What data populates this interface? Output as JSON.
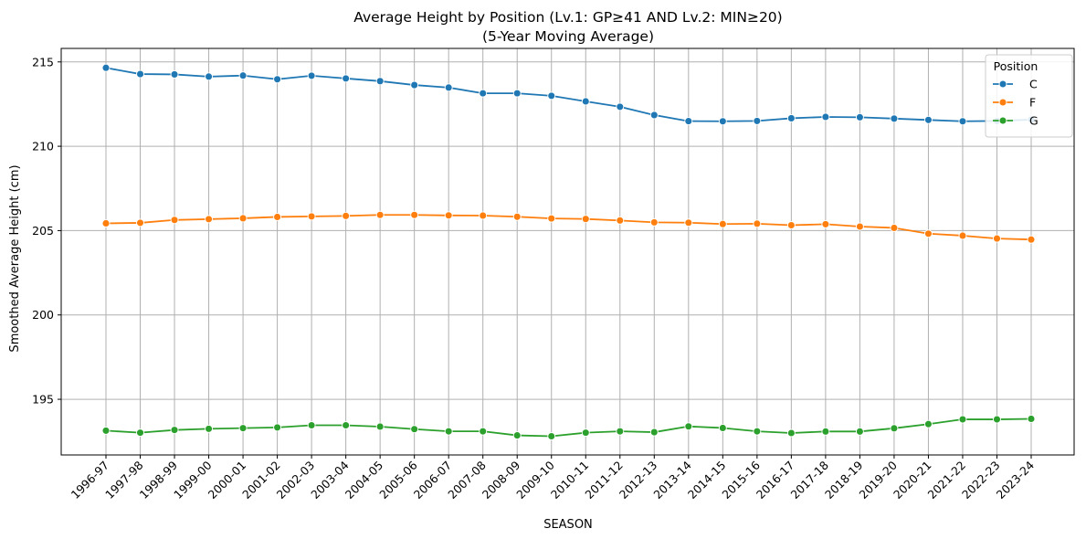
{
  "chart_data": {
    "type": "line",
    "title_line1": "Average Height by Position (Lv.1: GP≥41 AND Lv.2: MIN≥20)",
    "title_line2": "(5-Year Moving Average)",
    "xlabel": "SEASON",
    "ylabel": "Smoothed Average Height (cm)",
    "ylim": [
      191.7,
      215.8
    ],
    "yticks": [
      195,
      200,
      205,
      210,
      215
    ],
    "grid": true,
    "legend_title": "Position",
    "legend_placement": "top-right",
    "categories": [
      "1996-97",
      "1997-98",
      "1998-99",
      "1999-00",
      "2000-01",
      "2001-02",
      "2002-03",
      "2003-04",
      "2004-05",
      "2005-06",
      "2006-07",
      "2007-08",
      "2008-09",
      "2009-10",
      "2010-11",
      "2011-12",
      "2012-13",
      "2013-14",
      "2014-15",
      "2015-16",
      "2016-17",
      "2017-18",
      "2018-19",
      "2019-20",
      "2020-21",
      "2021-22",
      "2022-23",
      "2023-24"
    ],
    "series": [
      {
        "name": "C",
        "color": "#1f77b4",
        "values": [
          214.65,
          214.28,
          214.26,
          214.13,
          214.19,
          213.97,
          214.18,
          214.02,
          213.86,
          213.63,
          213.48,
          213.14,
          213.14,
          212.99,
          212.66,
          212.34,
          211.85,
          211.49,
          211.48,
          211.5,
          211.66,
          211.74,
          211.72,
          211.64,
          211.56,
          211.48,
          211.5,
          211.58
        ]
      },
      {
        "name": "F",
        "color": "#ff7f0e",
        "values": [
          205.43,
          205.46,
          205.63,
          205.68,
          205.73,
          205.81,
          205.84,
          205.87,
          205.93,
          205.93,
          205.9,
          205.89,
          205.82,
          205.72,
          205.69,
          205.6,
          205.49,
          205.47,
          205.39,
          205.41,
          205.32,
          205.38,
          205.24,
          205.16,
          204.82,
          204.7,
          204.53,
          204.47
        ]
      },
      {
        "name": "G",
        "color": "#2ca02c",
        "values": [
          193.14,
          193.02,
          193.18,
          193.25,
          193.29,
          193.33,
          193.46,
          193.46,
          193.38,
          193.23,
          193.1,
          193.1,
          192.86,
          192.81,
          193.02,
          193.1,
          193.05,
          193.39,
          193.3,
          193.1,
          193.0,
          193.09,
          193.09,
          193.28,
          193.53,
          193.81,
          193.81,
          193.84
        ]
      }
    ]
  }
}
